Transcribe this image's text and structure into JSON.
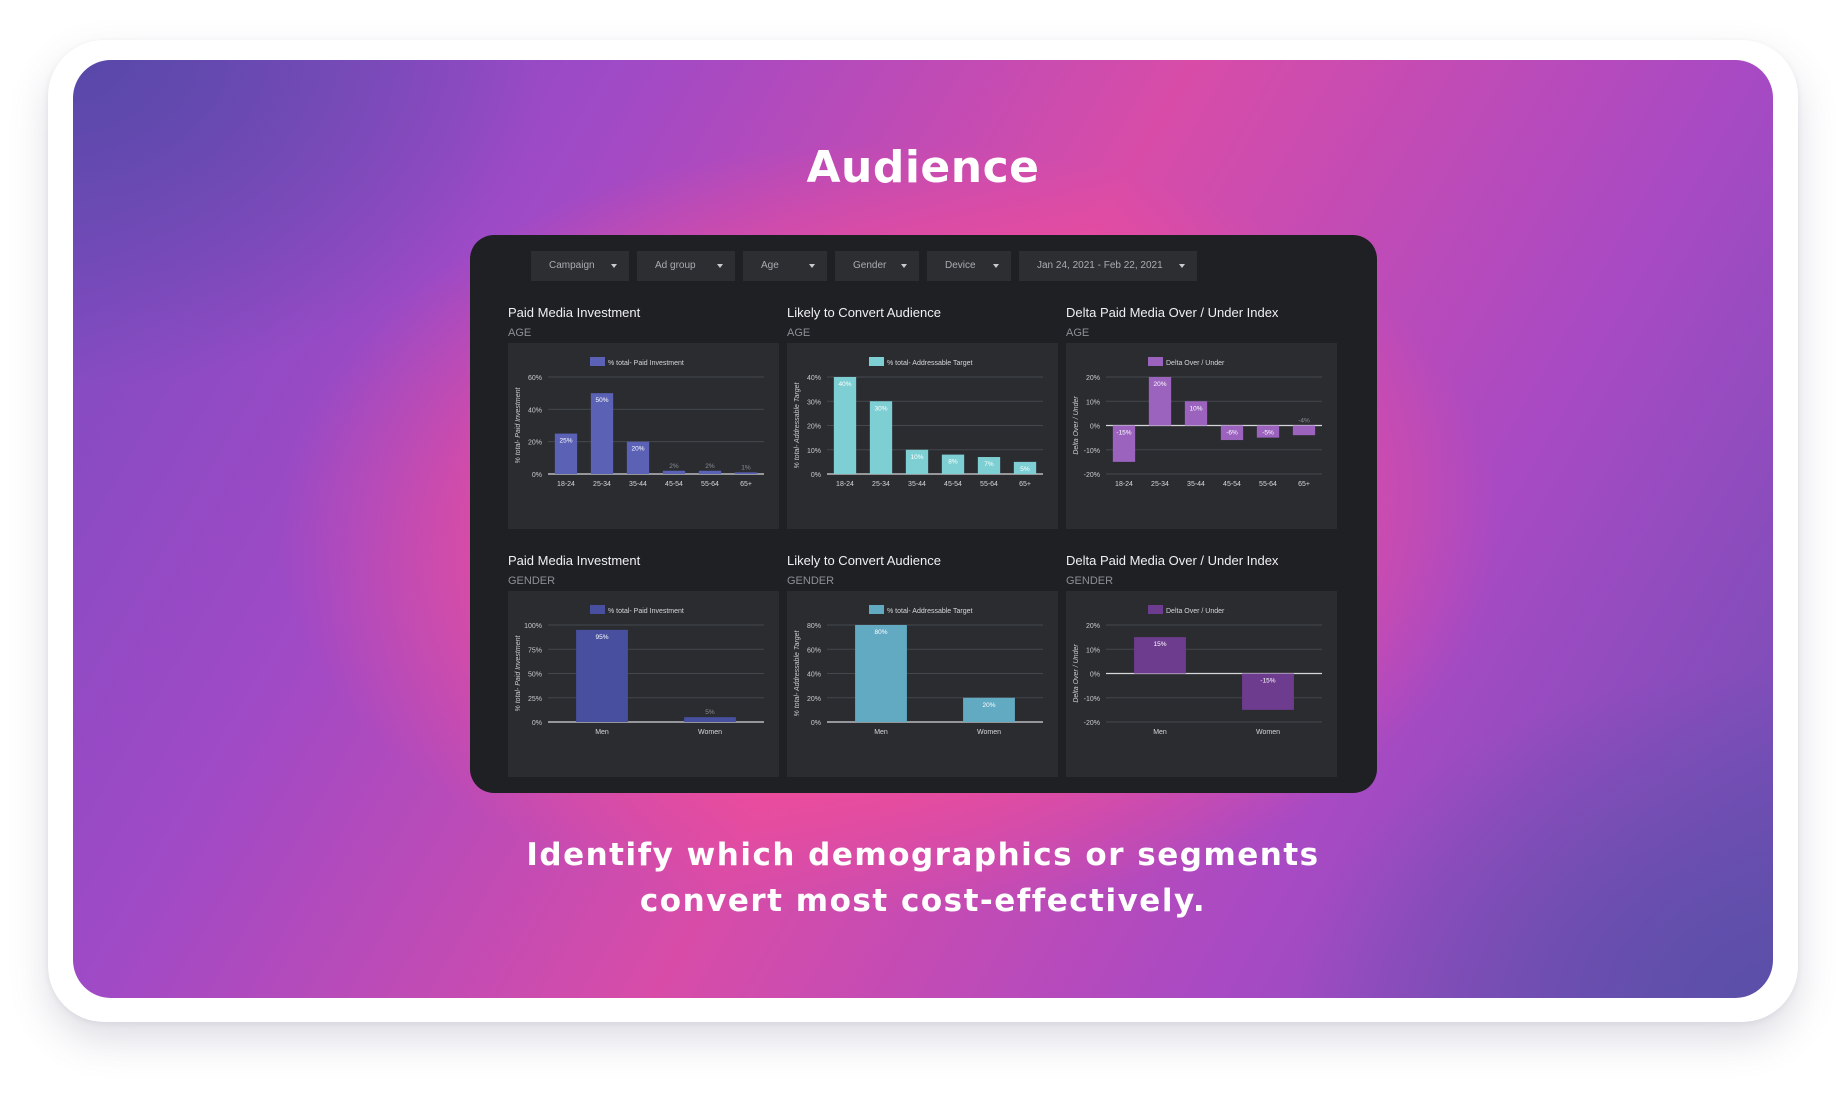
{
  "title": "Audience",
  "caption": {
    "line1": "Identify which demographics or segments",
    "line2": "convert most cost-effectively."
  },
  "filters": [
    {
      "label": "Campaign"
    },
    {
      "label": "Ad group"
    },
    {
      "label": "Age"
    },
    {
      "label": "Gender"
    },
    {
      "label": "Device"
    },
    {
      "label": "Jan 24, 2021 - Feb 22, 2021"
    }
  ],
  "colors": {
    "paid": "#5b62b5",
    "target": "#7ecfd3",
    "delta": "#9b63be",
    "paid_gender": "#474f9e",
    "target_gender": "#62a9c2",
    "delta_gender": "#6e3c8f"
  },
  "panels": [
    {
      "title": "Paid Media Investment",
      "subtitle": "AGE"
    },
    {
      "title": "Likely to Convert Audience",
      "subtitle": "AGE"
    },
    {
      "title": "Delta Paid Media Over / Under Index",
      "subtitle": "AGE"
    },
    {
      "title": "Paid Media Investment",
      "subtitle": "GENDER"
    },
    {
      "title": "Likely to Convert Audience",
      "subtitle": "GENDER"
    },
    {
      "title": "Delta Paid Media Over / Under Index",
      "subtitle": "GENDER"
    }
  ],
  "chart_data": [
    {
      "type": "bar",
      "legend": "% total- Paid Investment",
      "ylabel": "% total- Paid Investment",
      "categories": [
        "18-24",
        "25-34",
        "35-44",
        "45-54",
        "55-64",
        "65+"
      ],
      "values": [
        25,
        50,
        20,
        2,
        2,
        1
      ],
      "data_labels": [
        "25%",
        "50%",
        "20%",
        "2%",
        "2%",
        "1%"
      ],
      "yticks": [
        "0%",
        "20%",
        "40%",
        "60%"
      ],
      "ylim": [
        0,
        60
      ],
      "color_key": "paid"
    },
    {
      "type": "bar",
      "legend": "% total- Addressable Target",
      "ylabel": "% total- Addressable Target",
      "categories": [
        "18-24",
        "25-34",
        "35-44",
        "45-54",
        "55-64",
        "65+"
      ],
      "values": [
        40,
        30,
        10,
        8,
        7,
        5
      ],
      "data_labels": [
        "40%",
        "30%",
        "10%",
        "8%",
        "7%",
        "5%"
      ],
      "yticks": [
        "0%",
        "10%",
        "20%",
        "30%",
        "40%"
      ],
      "ylim": [
        0,
        40
      ],
      "color_key": "target"
    },
    {
      "type": "bar",
      "legend": "Delta Over / Under",
      "ylabel": "Delta Over / Under",
      "categories": [
        "18-24",
        "25-34",
        "35-44",
        "45-54",
        "55-64",
        "65+"
      ],
      "values": [
        -15,
        20,
        10,
        -6,
        -5,
        -4
      ],
      "data_labels": [
        "-15%",
        "20%",
        "10%",
        "-6%",
        "-5%",
        "-4%"
      ],
      "yticks": [
        "-20%",
        "-10%",
        "0%",
        "10%",
        "20%"
      ],
      "ylim": [
        -20,
        20
      ],
      "color_key": "delta"
    },
    {
      "type": "bar",
      "legend": "% total- Paid Investment",
      "ylabel": "% total- Paid Investment",
      "categories": [
        "Men",
        "Women"
      ],
      "values": [
        95,
        5
      ],
      "data_labels": [
        "95%",
        "5%"
      ],
      "yticks": [
        "0%",
        "25%",
        "50%",
        "75%",
        "100%"
      ],
      "ylim": [
        0,
        100
      ],
      "color_key": "paid_gender"
    },
    {
      "type": "bar",
      "legend": "% total- Addressable Target",
      "ylabel": "% total- Addressable Target",
      "categories": [
        "Men",
        "Women"
      ],
      "values": [
        80,
        20
      ],
      "data_labels": [
        "80%",
        "20%"
      ],
      "yticks": [
        "0%",
        "20%",
        "40%",
        "60%",
        "80%"
      ],
      "ylim": [
        0,
        80
      ],
      "color_key": "target_gender"
    },
    {
      "type": "bar",
      "legend": "Delta Over / Under",
      "ylabel": "Delta Over / Under",
      "categories": [
        "Men",
        "Women"
      ],
      "values": [
        15,
        -15
      ],
      "data_labels": [
        "15%",
        "-15%"
      ],
      "yticks": [
        "-20%",
        "-10%",
        "0%",
        "10%",
        "20%"
      ],
      "ylim": [
        -20,
        20
      ],
      "color_key": "delta_gender"
    }
  ]
}
